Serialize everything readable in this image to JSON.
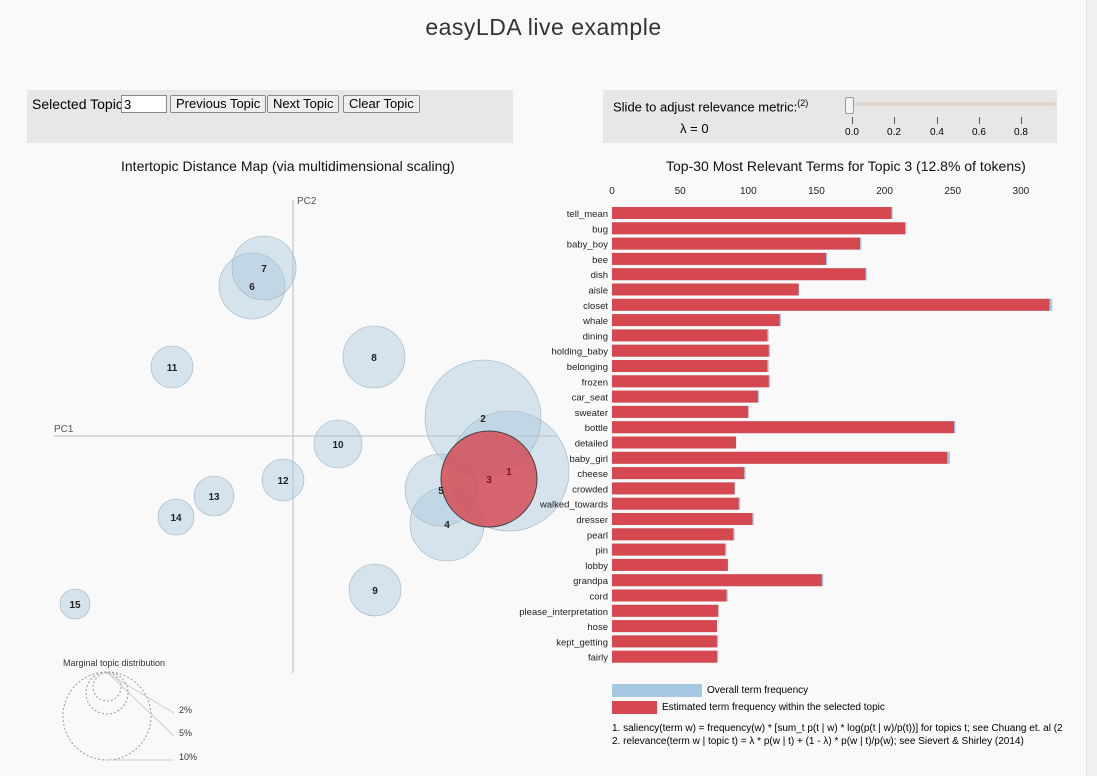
{
  "page": {
    "title": "easyLDA live example"
  },
  "topic_controls": {
    "label": "Selected Topic:",
    "value": "3",
    "prev_label": "Previous Topic",
    "next_label": "Next Topic",
    "clear_label": "Clear Topic"
  },
  "relevance": {
    "label": "Slide to adjust relevance metric:",
    "footnote_ref": "(2)",
    "lambda_text": "λ = 0",
    "lambda_value": 0,
    "ticks": [
      "0.0",
      "0.2",
      "0.4",
      "0.6",
      "0.8"
    ]
  },
  "intertopic": {
    "title": "Intertopic Distance Map (via multidimensional scaling)",
    "pc1": "PC1",
    "pc2": "PC2",
    "selected_color": "#d6484f",
    "circle_color": "#a9c8de",
    "topics": [
      {
        "id": "1",
        "r": 60
      },
      {
        "id": "2",
        "r": 58
      },
      {
        "id": "3",
        "r": 48,
        "selected": true
      },
      {
        "id": "4",
        "r": 37
      },
      {
        "id": "5",
        "r": 36
      },
      {
        "id": "6",
        "r": 33
      },
      {
        "id": "7",
        "r": 32
      },
      {
        "id": "8",
        "r": 31
      },
      {
        "id": "9",
        "r": 26
      },
      {
        "id": "10",
        "r": 24
      },
      {
        "id": "11",
        "r": 21
      },
      {
        "id": "12",
        "r": 21
      },
      {
        "id": "13",
        "r": 20
      },
      {
        "id": "14",
        "r": 18
      },
      {
        "id": "15",
        "r": 15
      }
    ],
    "marginal": {
      "title": "Marginal topic distribution",
      "labels": [
        "2%",
        "5%",
        "10%"
      ]
    }
  },
  "chart_data": {
    "type": "bar",
    "title": "Top-30 Most Relevant Terms for Topic 3 (12.8% of tokens)",
    "x_ticks": [
      "0",
      "50",
      "100",
      "150",
      "200",
      "250",
      "300"
    ],
    "xlim": [
      0,
      325
    ],
    "categories": [
      "tell_mean",
      "bug",
      "baby_boy",
      "bee",
      "dish",
      "aisle",
      "closet",
      "whale",
      "dining",
      "holding_baby",
      "belonging",
      "frozen",
      "car_seat",
      "sweater",
      "bottle",
      "detailed",
      "baby_girl",
      "cheese",
      "crowded",
      "walked_towards",
      "dresser",
      "pearl",
      "pin",
      "lobby",
      "grandpa",
      "cord",
      "please_interpretation",
      "hose",
      "kept_getting",
      "fairly"
    ],
    "series": [
      {
        "name": "Overall term frequency",
        "color": "#a6c9e2",
        "values": [
          206,
          216,
          183,
          158,
          187,
          137,
          323,
          124,
          115,
          116,
          115,
          116,
          108,
          100,
          252,
          91,
          248,
          98,
          90,
          94,
          104,
          90,
          84,
          85,
          155,
          85,
          78,
          77,
          78,
          78
        ]
      },
      {
        "name": "Estimated term frequency within the selected topic",
        "color": "#d6484f",
        "values": [
          205,
          215,
          182,
          157,
          186,
          137,
          321,
          123,
          114,
          115,
          114,
          115,
          107,
          100,
          251,
          91,
          246,
          97,
          90,
          93,
          103,
          89,
          83,
          85,
          154,
          84,
          78,
          77,
          77,
          77
        ]
      }
    ],
    "footnotes": [
      "1. saliency(term w) = frequency(w) * [sum_t p(t | w) * log(p(t | w)/p(t))] for topics t; see Chuang et. al (2",
      "2. relevance(term w | topic t) = λ * p(w | t) + (1 - λ) * p(w | t)/p(w); see Sievert & Shirley (2014)"
    ]
  }
}
